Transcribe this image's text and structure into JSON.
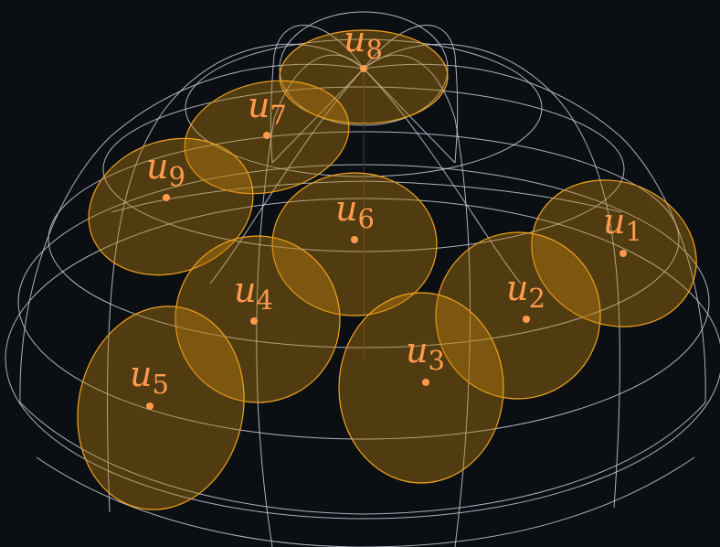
{
  "diagram": {
    "labels": [
      {
        "id": "u8",
        "base": "u",
        "sub": "8"
      },
      {
        "id": "u7",
        "base": "u",
        "sub": "7"
      },
      {
        "id": "u9",
        "base": "u",
        "sub": "9"
      },
      {
        "id": "u6",
        "base": "u",
        "sub": "6"
      },
      {
        "id": "u1",
        "base": "u",
        "sub": "1"
      },
      {
        "id": "u2",
        "base": "u",
        "sub": "2"
      },
      {
        "id": "u4",
        "base": "u",
        "sub": "4"
      },
      {
        "id": "u3",
        "base": "u",
        "sub": "3"
      },
      {
        "id": "u5",
        "base": "u",
        "sub": "5"
      }
    ],
    "colors": {
      "background": "#0b0f14",
      "grid": "#c9ccd6",
      "cap_fill": "#c4840e",
      "cap_stroke": "#f0a31c",
      "label": "#ff9a4f"
    }
  }
}
